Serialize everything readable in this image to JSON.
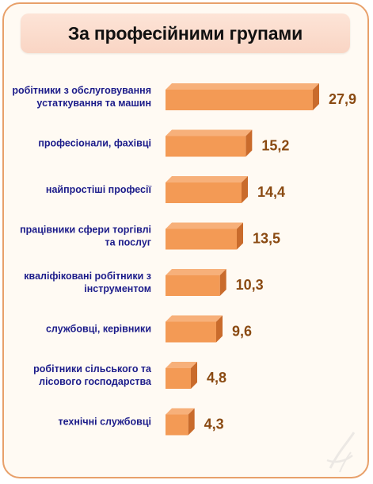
{
  "chart_data": {
    "type": "bar",
    "orientation": "horizontal",
    "title": "За професійними групами",
    "categories": [
      [
        "робітники з обслуговування",
        "устаткування та машин"
      ],
      [
        "професіонали, фахівці"
      ],
      [
        "найпростіші професії"
      ],
      [
        "працівники сфери торгівлі",
        "та послуг"
      ],
      [
        "кваліфіковані робітники з",
        "інструментом"
      ],
      [
        "службовці, керівники"
      ],
      [
        "робітники сільського та",
        "лісового господарства"
      ],
      [
        "технічні службовці"
      ]
    ],
    "values": [
      27.9,
      15.2,
      14.4,
      13.5,
      10.3,
      9.6,
      4.8,
      4.3
    ],
    "value_labels": [
      "27,9",
      "15,2",
      "14,4",
      "13,5",
      "10,3",
      "9,6",
      "4,8",
      "4,3"
    ],
    "xlim": [
      0,
      27.9
    ],
    "grid": false,
    "colors": {
      "bar_front": "#f39a55",
      "bar_top": "#f7b07a",
      "bar_side": "#c96b2c",
      "category_text": "#1c1c8a",
      "value_text": "#8a4a12",
      "frame": "#e8a06a",
      "title_bg": "#fde4d7"
    }
  }
}
